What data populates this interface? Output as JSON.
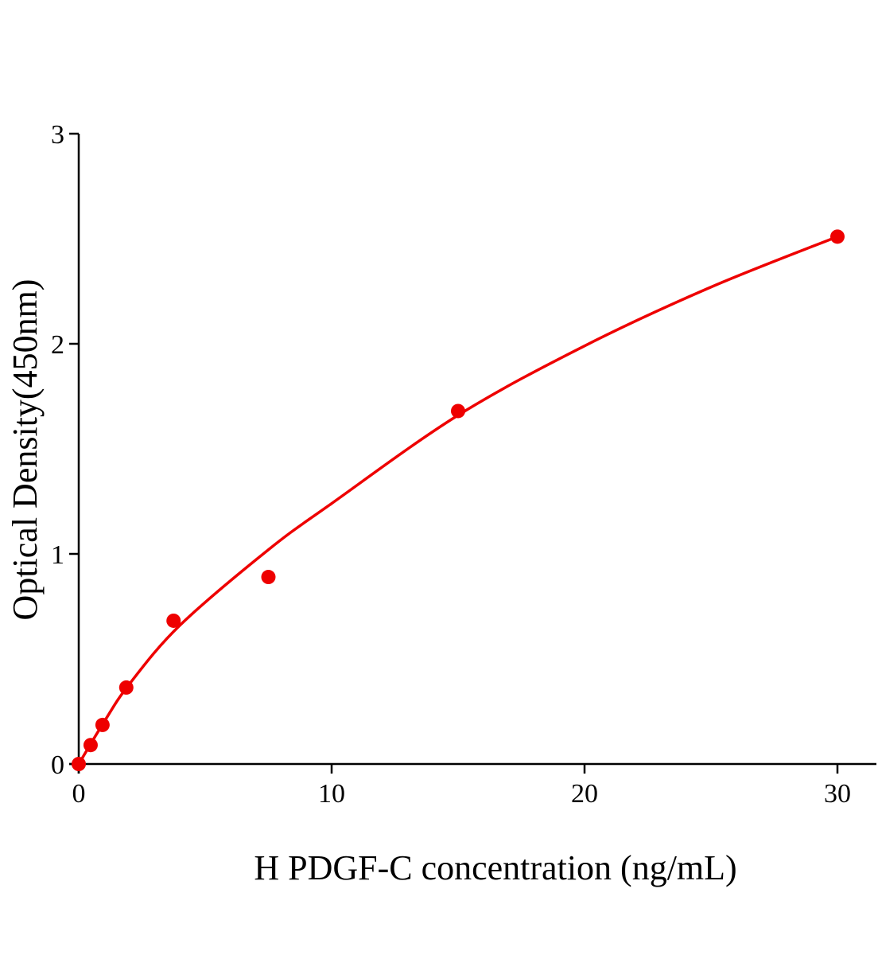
{
  "chart_data": {
    "type": "scatter",
    "title": "",
    "xlabel": "H PDGF-C concentration (ng/mL)",
    "ylabel": "Optical Density(450nm)",
    "xlim": [
      0,
      31.5
    ],
    "ylim": [
      0,
      3
    ],
    "xticks": [
      "0",
      "10",
      "20",
      "30"
    ],
    "yticks": [
      "0",
      "1",
      "2",
      "3"
    ],
    "grid": false,
    "color": "#ee0000",
    "series": [
      {
        "x": [
          0,
          0.47,
          0.94,
          1.88,
          3.75,
          7.5,
          15,
          30
        ],
        "y": [
          0.0,
          0.09,
          0.186,
          0.364,
          0.682,
          0.89,
          1.68,
          2.51
        ]
      }
    ],
    "fit_curve": {
      "x": [
        0,
        1,
        2,
        4,
        7.5,
        10,
        15,
        20,
        25,
        30
      ],
      "y": [
        0,
        0.2,
        0.38,
        0.66,
        1.02,
        1.24,
        1.66,
        1.99,
        2.27,
        2.51
      ]
    }
  }
}
